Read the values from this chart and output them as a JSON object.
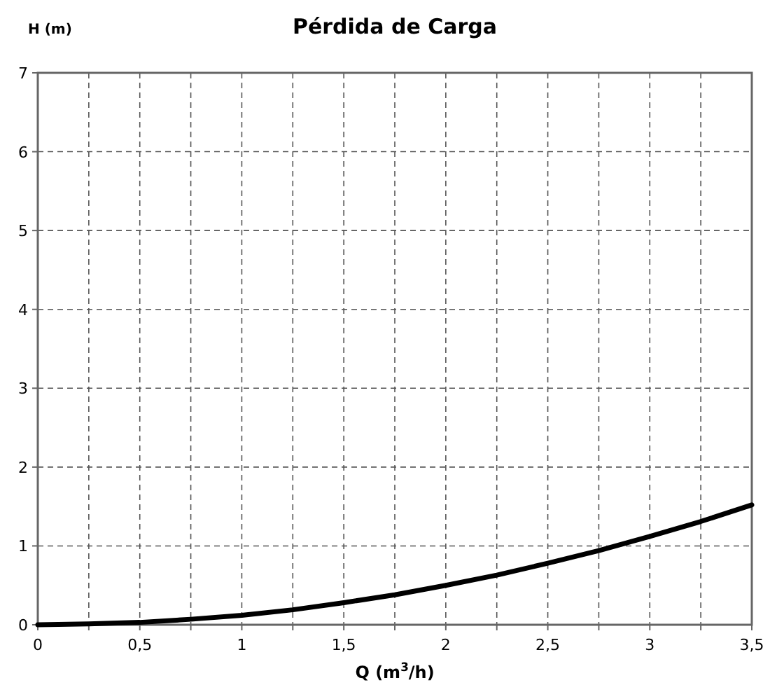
{
  "chart_data": {
    "type": "line",
    "title": "Pérdida de Carga",
    "xlabel": "Q (m$^{3}$/h)",
    "ylabel": "H (m)",
    "x": [
      0,
      0.25,
      0.5,
      0.75,
      1,
      1.25,
      1.5,
      1.75,
      2,
      2.25,
      2.5,
      2.75,
      3,
      3.25,
      3.5
    ],
    "series": [
      {
        "color": "#000000",
        "values": [
          0,
          0.01,
          0.03,
          0.07,
          0.12,
          0.19,
          0.28,
          0.38,
          0.5,
          0.63,
          0.78,
          0.94,
          1.12,
          1.31,
          1.52
        ]
      }
    ],
    "xlim": [
      0,
      3.5
    ],
    "ylim": [
      0,
      7
    ],
    "xticks": [
      0,
      {
        "value": 0.25,
        "label": null
      },
      {
        "value": 0.5,
        "label": "0,5"
      },
      {
        "value": 0.75,
        "label": null
      },
      1,
      {
        "value": 1.25,
        "label": null
      },
      {
        "value": 1.5,
        "label": "1,5"
      },
      {
        "value": 1.75,
        "label": null
      },
      2,
      {
        "value": 2.25,
        "label": null
      },
      {
        "value": 2.5,
        "label": "2,5"
      },
      {
        "value": 2.75,
        "label": null
      },
      3,
      {
        "value": 3.25,
        "label": null
      },
      {
        "value": 3.5,
        "label": "3,5"
      }
    ],
    "yticks": [
      0,
      1,
      2,
      3,
      4,
      5,
      6,
      7
    ],
    "grid": true,
    "marker": "none",
    "line_style": "solid"
  }
}
